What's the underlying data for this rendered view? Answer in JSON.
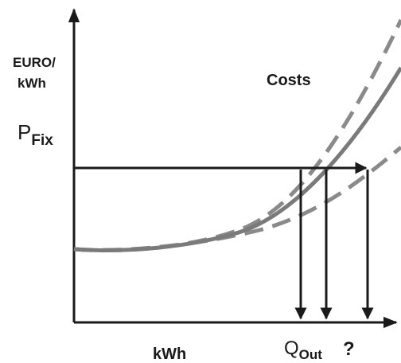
{
  "labels": {
    "y_unit_line1": "EURO/",
    "y_unit_line2": "kWh",
    "price_main": "P",
    "price_sub": "Fix",
    "costs": "Costs",
    "x_unit": "kWh",
    "quantity_main": "Q",
    "quantity_sub": "Out",
    "question": "?"
  },
  "colors": {
    "axis": "#1a1a1a",
    "cost_curve": "#7a7a7a",
    "dashed_curves": "#8a8a8a",
    "arrows": "#1a1a1a"
  }
}
